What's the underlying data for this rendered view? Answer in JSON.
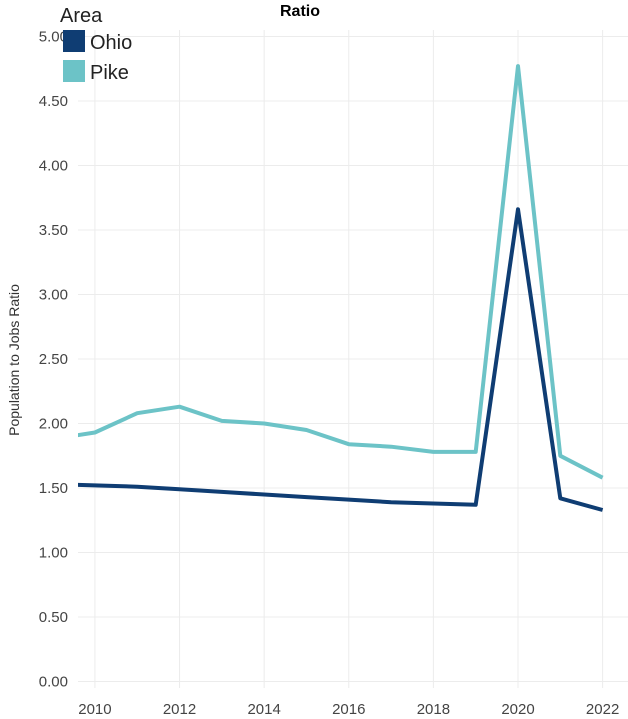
{
  "chart_data": {
    "type": "line",
    "title": "Ratio",
    "xlabel": "",
    "ylabel": "Population to Jobs Ratio",
    "x": [
      2009,
      2010,
      2011,
      2012,
      2013,
      2014,
      2015,
      2016,
      2017,
      2018,
      2019,
      2020,
      2021,
      2022
    ],
    "series": [
      {
        "name": "Ohio",
        "color": "#0f3d73",
        "values": [
          1.53,
          1.52,
          1.51,
          1.49,
          1.47,
          1.45,
          1.43,
          1.41,
          1.39,
          1.38,
          1.37,
          3.66,
          1.42,
          1.33
        ]
      },
      {
        "name": "Pike",
        "color": "#6cc3c7",
        "values": [
          1.88,
          1.93,
          2.08,
          2.13,
          2.02,
          2.0,
          1.95,
          1.84,
          1.82,
          1.78,
          1.78,
          4.77,
          1.75,
          1.58
        ]
      }
    ],
    "xlim": [
      2009.6,
      2022.6
    ],
    "ylim": [
      -0.05,
      5.05
    ],
    "xticks": [
      "2010",
      "2012",
      "2014",
      "2016",
      "2018",
      "2020",
      "2022"
    ],
    "yticks": [
      "0.00",
      "0.50",
      "1.00",
      "1.50",
      "2.00",
      "2.50",
      "3.00",
      "3.50",
      "4.00",
      "4.50",
      "5.00"
    ],
    "grid": true,
    "legend": {
      "title": "Area",
      "position": "top-left"
    }
  }
}
